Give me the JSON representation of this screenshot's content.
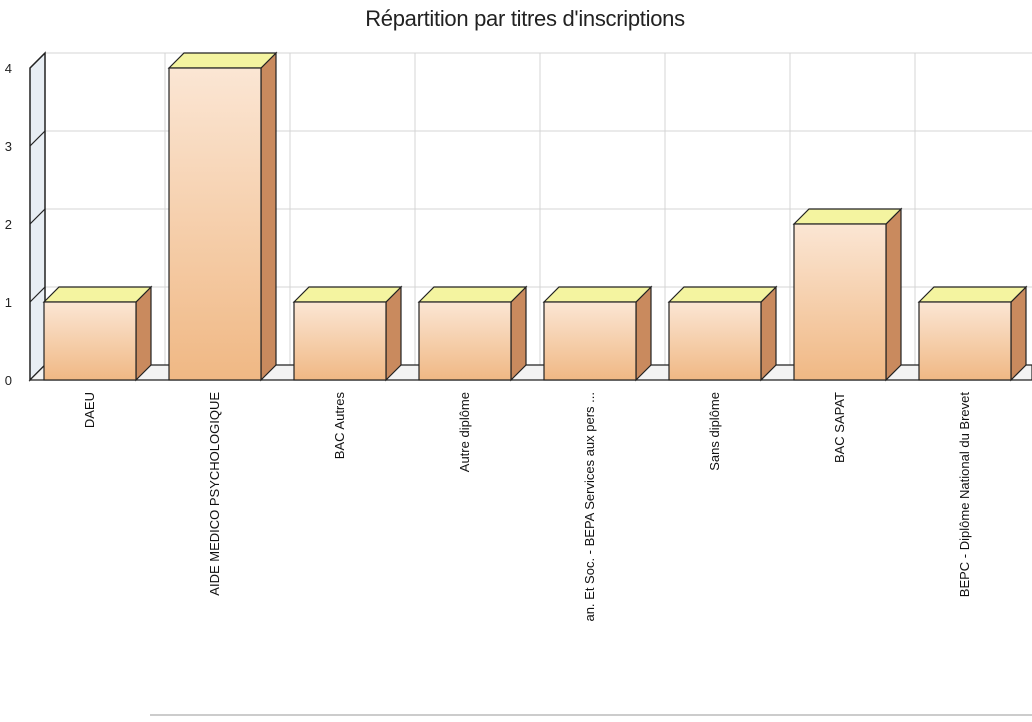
{
  "chart_data": {
    "type": "bar",
    "title": "Répartition par titres d'inscriptions",
    "xlabel": "",
    "ylabel": "",
    "categories": [
      "DAEU",
      "AIDE MEDICO PSYCHOLOGIQUE",
      "BAC Autres",
      "Autre diplôme",
      "an. Et Soc. - BEPA Services aux pers ...",
      "Sans diplôme",
      "BAC SAPAT",
      "BEPC - Diplôme National du Brevet"
    ],
    "values": [
      1,
      4,
      1,
      1,
      1,
      1,
      2,
      1
    ],
    "yticks": [
      "0",
      "1",
      "2",
      "3",
      "4"
    ],
    "ylim": [
      0,
      4
    ],
    "grid": true,
    "legend": "none",
    "colors": {
      "bar_top": "#f4f4a0",
      "bar_front_light": "#fbe6d4",
      "bar_front_dark": "#f0b884",
      "bar_side": "#c98a5e",
      "grid": "#d4d4d4",
      "axis_wall": "#e8eef4"
    }
  }
}
